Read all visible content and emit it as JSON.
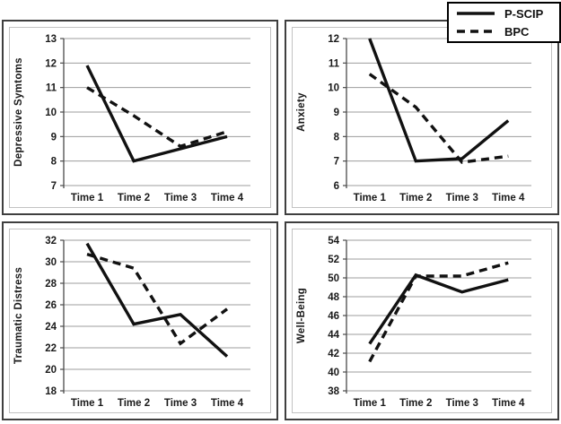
{
  "legend": {
    "entries": [
      {
        "label": "P-SCIP",
        "line_style": "solid"
      },
      {
        "label": "BPC",
        "line_style": "dashed"
      }
    ]
  },
  "colors": {
    "line": "#111111",
    "grid": "#9d9d9d",
    "axis": "#4a4a4a",
    "text": "#1a1a1a",
    "panel_border": "#3f3f3f",
    "inner_border": "#c2c2c2",
    "legend_border": "#000000",
    "background": "#ffffff"
  },
  "chart_data": [
    {
      "type": "line",
      "title": "",
      "ylabel": "Depressive Symtoms",
      "xlabel": "",
      "categories": [
        "Time 1",
        "Time 2",
        "Time 3",
        "Time 4"
      ],
      "ylim": [
        7,
        13
      ],
      "yticks": [
        7,
        8,
        9,
        10,
        11,
        12,
        13
      ],
      "grid": true,
      "legend_position": "figure-top-right",
      "series": [
        {
          "name": "P-SCIP",
          "style": "solid",
          "values": [
            11.9,
            8.0,
            8.5,
            9.0
          ]
        },
        {
          "name": "BPC",
          "style": "dashed",
          "values": [
            11.0,
            9.85,
            8.6,
            9.2
          ]
        }
      ]
    },
    {
      "type": "line",
      "title": "",
      "ylabel": "Anxiety",
      "xlabel": "",
      "categories": [
        "Time 1",
        "Time 2",
        "Time 3",
        "Time 4"
      ],
      "ylim": [
        6,
        12
      ],
      "yticks": [
        6,
        7,
        8,
        9,
        10,
        11,
        12
      ],
      "grid": true,
      "series": [
        {
          "name": "P-SCIP",
          "style": "solid",
          "values": [
            12.0,
            7.0,
            7.1,
            8.65
          ]
        },
        {
          "name": "BPC",
          "style": "dashed",
          "values": [
            10.55,
            9.2,
            6.95,
            7.2
          ]
        }
      ]
    },
    {
      "type": "line",
      "title": "",
      "ylabel": "Traumatic Distress",
      "xlabel": "",
      "categories": [
        "Time 1",
        "Time 2",
        "Time 3",
        "Time 4"
      ],
      "ylim": [
        18,
        32
      ],
      "yticks": [
        18,
        20,
        22,
        24,
        26,
        28,
        30,
        32
      ],
      "grid": true,
      "series": [
        {
          "name": "P-SCIP",
          "style": "solid",
          "values": [
            31.7,
            24.2,
            25.1,
            21.2
          ]
        },
        {
          "name": "BPC",
          "style": "dashed",
          "values": [
            30.7,
            29.4,
            22.4,
            25.6
          ]
        }
      ]
    },
    {
      "type": "line",
      "title": "",
      "ylabel": "Well-Being",
      "xlabel": "",
      "categories": [
        "Time 1",
        "Time 2",
        "Time 3",
        "Time 4"
      ],
      "ylim": [
        38,
        54
      ],
      "yticks": [
        38,
        40,
        42,
        44,
        46,
        48,
        50,
        52,
        54
      ],
      "grid": true,
      "series": [
        {
          "name": "P-SCIP",
          "style": "solid",
          "values": [
            43.0,
            50.3,
            48.5,
            49.8
          ]
        },
        {
          "name": "BPC",
          "style": "dashed",
          "values": [
            41.1,
            50.2,
            50.2,
            51.6
          ]
        }
      ]
    }
  ]
}
